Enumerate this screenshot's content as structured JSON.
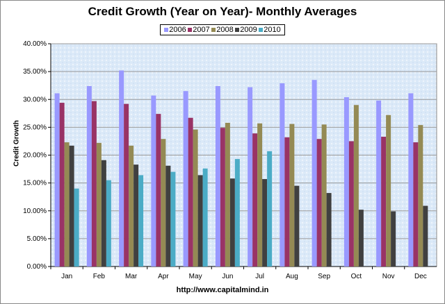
{
  "chart_data": {
    "type": "bar",
    "title": "Credit Growth (Year on Year)- Monthly Averages",
    "xlabel": "",
    "ylabel": "Credit Growth",
    "footer": "http://www.capitalmind.in",
    "ylim": [
      0,
      40
    ],
    "yticks": [
      "0.00%",
      "5.00%",
      "10.00%",
      "15.00%",
      "20.00%",
      "25.00%",
      "30.00%",
      "35.00%",
      "40.00%"
    ],
    "grid": true,
    "legend": "top",
    "categories": [
      "Jan",
      "Feb",
      "Mar",
      "Apr",
      "May",
      "Jun",
      "Jul",
      "Aug",
      "Sep",
      "Oct",
      "Nov",
      "Dec"
    ],
    "series": [
      {
        "name": "2006",
        "color": "#9999ff",
        "values": [
          31.1,
          32.4,
          35.2,
          30.7,
          31.5,
          32.4,
          32.2,
          32.9,
          33.5,
          30.4,
          29.8,
          31.1
        ]
      },
      {
        "name": "2007",
        "color": "#993366",
        "values": [
          29.4,
          29.7,
          29.2,
          27.4,
          26.7,
          24.9,
          23.9,
          23.2,
          22.9,
          22.5,
          23.3,
          22.3
        ]
      },
      {
        "name": "2008",
        "color": "#948a54",
        "values": [
          22.3,
          22.2,
          21.7,
          22.9,
          24.6,
          25.8,
          25.7,
          25.6,
          25.5,
          29.0,
          27.2,
          25.4
        ]
      },
      {
        "name": "2009",
        "color": "#404040",
        "values": [
          21.7,
          19.1,
          18.3,
          18.1,
          16.4,
          15.8,
          15.7,
          14.5,
          13.2,
          10.2,
          9.9,
          10.9
        ]
      },
      {
        "name": "2010",
        "color": "#4bacc6",
        "values": [
          14.0,
          15.5,
          16.4,
          17.0,
          17.6,
          19.3,
          20.7,
          null,
          null,
          null,
          null,
          null
        ]
      }
    ]
  }
}
